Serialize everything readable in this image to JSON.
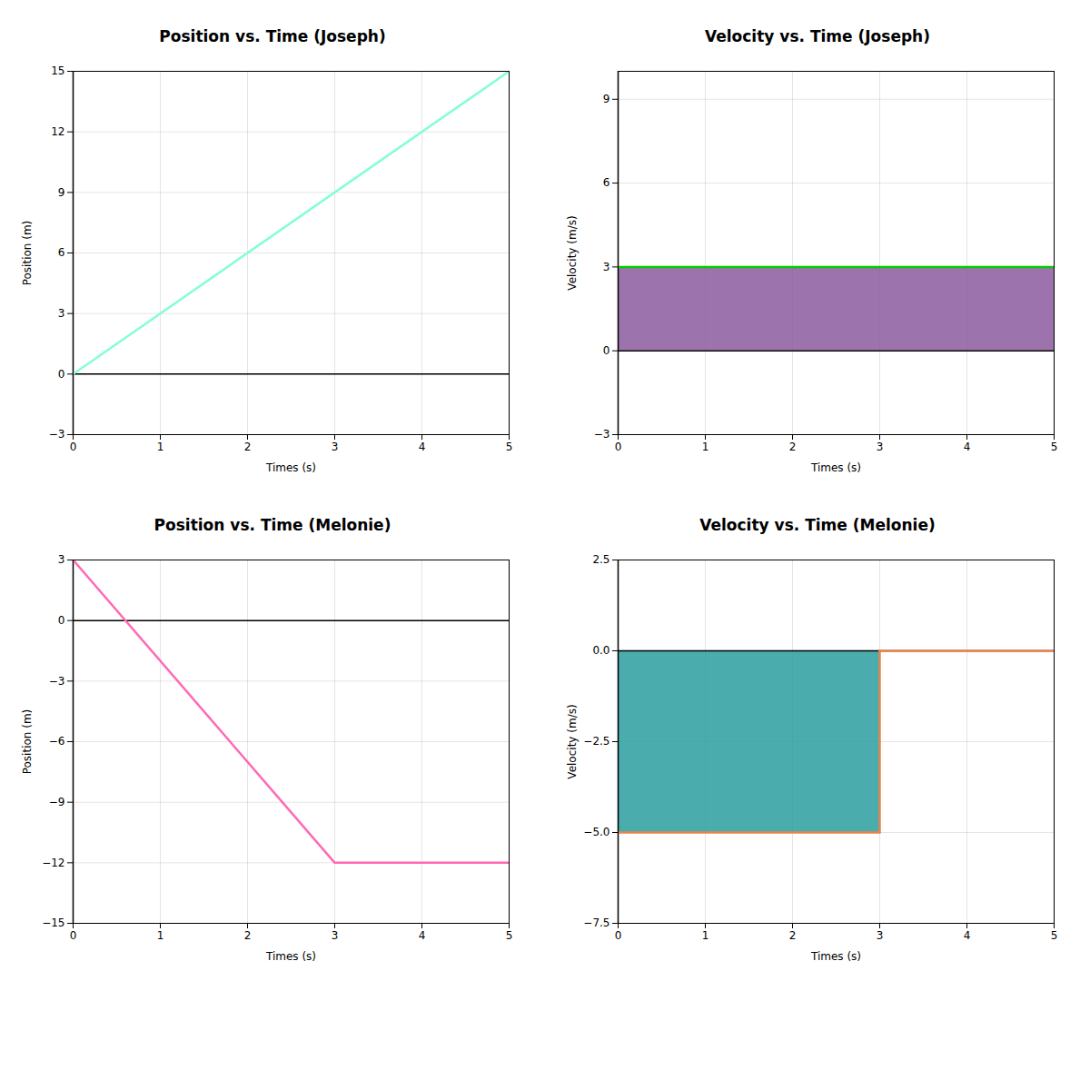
{
  "chart_data": [
    {
      "type": "line",
      "title": "Position vs. Time (Joseph)",
      "xlabel": "Times (s)",
      "ylabel": "Position (m)",
      "series": [
        {
          "type": "line",
          "color": "#7fffd4",
          "x": [
            0,
            5
          ],
          "values": [
            0,
            15
          ]
        }
      ],
      "xlim": [
        0,
        5
      ],
      "ylim": [
        -3,
        15
      ],
      "xticks": [
        0,
        1,
        2,
        3,
        4,
        5
      ],
      "yticks": [
        -3,
        0,
        3,
        6,
        9,
        12,
        15
      ],
      "grid": true
    },
    {
      "type": "line",
      "title": "Velocity vs. Time (Joseph)",
      "xlabel": "Times (s)",
      "ylabel": "Velocity (m/s)",
      "series": [
        {
          "type": "area",
          "color": "#8b5a9e",
          "x": [
            0,
            5
          ],
          "values": [
            3,
            3
          ]
        },
        {
          "type": "line",
          "color": "#00cc00",
          "x": [
            0,
            5
          ],
          "values": [
            3,
            3
          ]
        }
      ],
      "xlim": [
        0,
        5
      ],
      "ylim": [
        -3,
        10
      ],
      "xticks": [
        0,
        1,
        2,
        3,
        4,
        5
      ],
      "yticks": [
        -3,
        0,
        3,
        6,
        9
      ],
      "grid": true
    },
    {
      "type": "line",
      "title": "Position vs. Time (Melonie)",
      "xlabel": "Times (s)",
      "ylabel": "Position (m)",
      "series": [
        {
          "type": "line",
          "color": "#ff69b4",
          "x": [
            0,
            3,
            5
          ],
          "values": [
            3,
            -12,
            -12
          ]
        }
      ],
      "xlim": [
        0,
        5
      ],
      "ylim": [
        -15,
        3
      ],
      "xticks": [
        0,
        1,
        2,
        3,
        4,
        5
      ],
      "yticks": [
        -15,
        -12,
        -9,
        -6,
        -3,
        0,
        3
      ],
      "grid": true
    },
    {
      "type": "line",
      "title": "Velocity vs. Time (Melonie)",
      "xlabel": "Times (s)",
      "ylabel": "Velocity (m/s)",
      "series": [
        {
          "type": "area",
          "color": "#2a9d9d",
          "x": [
            0,
            3
          ],
          "values": [
            -5,
            -5
          ]
        },
        {
          "type": "line",
          "color": "#e8834e",
          "x": [
            0,
            3
          ],
          "values": [
            -5,
            -5
          ]
        },
        {
          "type": "line",
          "color": "#e8834e",
          "x": [
            3,
            5
          ],
          "values": [
            0,
            0
          ]
        },
        {
          "type": "line",
          "color": "#e8834e",
          "x": [
            3,
            3
          ],
          "values": [
            -5,
            0
          ]
        }
      ],
      "xlim": [
        0,
        5
      ],
      "ylim": [
        -7.5,
        2.5
      ],
      "xticks": [
        0,
        1,
        2,
        3,
        4,
        5
      ],
      "yticks": [
        -7.5,
        {
          "value": -5.0,
          "label": "−5.0"
        },
        -2.5,
        {
          "value": 0.0,
          "label": "0.0"
        },
        2.5
      ],
      "grid": true
    }
  ]
}
